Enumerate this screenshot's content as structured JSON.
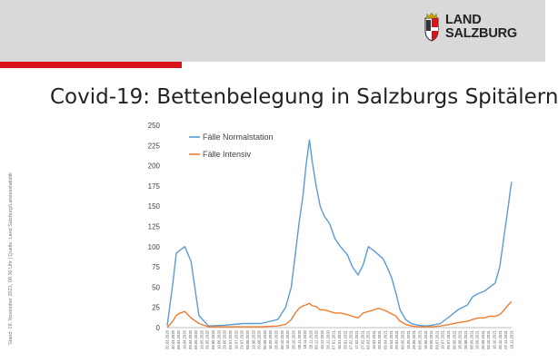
{
  "header": {
    "logo_line1": "LAND",
    "logo_line2": "SALZBURG",
    "accent_color": "#d7141a"
  },
  "page_title": "Covid-19: Bettenbelegung in Salzburgs Spitälern",
  "side_note": "Stand: 19. November 2021, 08.30 Uhr | Quelle: Land Salzburg/Landesstatistik",
  "chart_data": {
    "type": "line",
    "title": "",
    "xlabel": "",
    "ylabel": "",
    "ylim": [
      0,
      250
    ],
    "yticks": [
      0,
      25,
      50,
      75,
      100,
      125,
      150,
      175,
      200,
      225,
      250
    ],
    "grid": false,
    "legend_position": "top-left",
    "x": [
      "2020-03-20",
      "2020-03-30",
      "2020-04-05",
      "2020-04-12",
      "2020-04-20",
      "2020-05-01",
      "2020-05-15",
      "2020-06-01",
      "2020-07-01",
      "2020-08-01",
      "2020-09-01",
      "2020-10-01",
      "2020-10-15",
      "2020-10-25",
      "2020-11-01",
      "2020-11-08",
      "2020-11-15",
      "2020-11-20",
      "2020-11-26",
      "2020-12-01",
      "2020-12-08",
      "2020-12-15",
      "2020-12-22",
      "2021-01-01",
      "2021-01-10",
      "2021-01-20",
      "2021-02-01",
      "2021-02-10",
      "2021-02-20",
      "2021-03-01",
      "2021-03-10",
      "2021-03-20",
      "2021-03-28",
      "2021-04-05",
      "2021-04-12",
      "2021-04-20",
      "2021-04-28",
      "2021-05-05",
      "2021-05-15",
      "2021-05-25",
      "2021-06-05",
      "2021-06-20",
      "2021-07-01",
      "2021-07-15",
      "2021-08-01",
      "2021-08-15",
      "2021-09-01",
      "2021-09-10",
      "2021-09-20",
      "2021-10-01",
      "2021-10-10",
      "2021-10-20",
      "2021-10-28",
      "2021-11-05",
      "2021-11-12",
      "2021-11-16",
      "2021-11-18"
    ],
    "series": [
      {
        "name": "Fälle Normalstation",
        "color": "#5b9bd5",
        "values": [
          2,
          55,
          92,
          96,
          100,
          82,
          15,
          2,
          3,
          5,
          5,
          10,
          25,
          50,
          90,
          130,
          165,
          200,
          232,
          205,
          175,
          150,
          138,
          128,
          110,
          100,
          90,
          75,
          65,
          78,
          100,
          95,
          90,
          85,
          75,
          62,
          42,
          22,
          10,
          5,
          3,
          2,
          3,
          5,
          14,
          22,
          28,
          38,
          42,
          45,
          50,
          55,
          75,
          115,
          150,
          172,
          180
        ]
      },
      {
        "name": "Fälle Intensiv",
        "color": "#ed7d31",
        "values": [
          0,
          8,
          15,
          18,
          20,
          12,
          5,
          1,
          1,
          1,
          1,
          2,
          4,
          10,
          18,
          24,
          27,
          28,
          30,
          27,
          26,
          22,
          22,
          20,
          18,
          18,
          16,
          14,
          12,
          18,
          20,
          22,
          24,
          22,
          20,
          17,
          14,
          8,
          4,
          2,
          1,
          1,
          1,
          2,
          4,
          6,
          8,
          10,
          12,
          12,
          14,
          14,
          16,
          22,
          28,
          31,
          32
        ]
      }
    ]
  }
}
